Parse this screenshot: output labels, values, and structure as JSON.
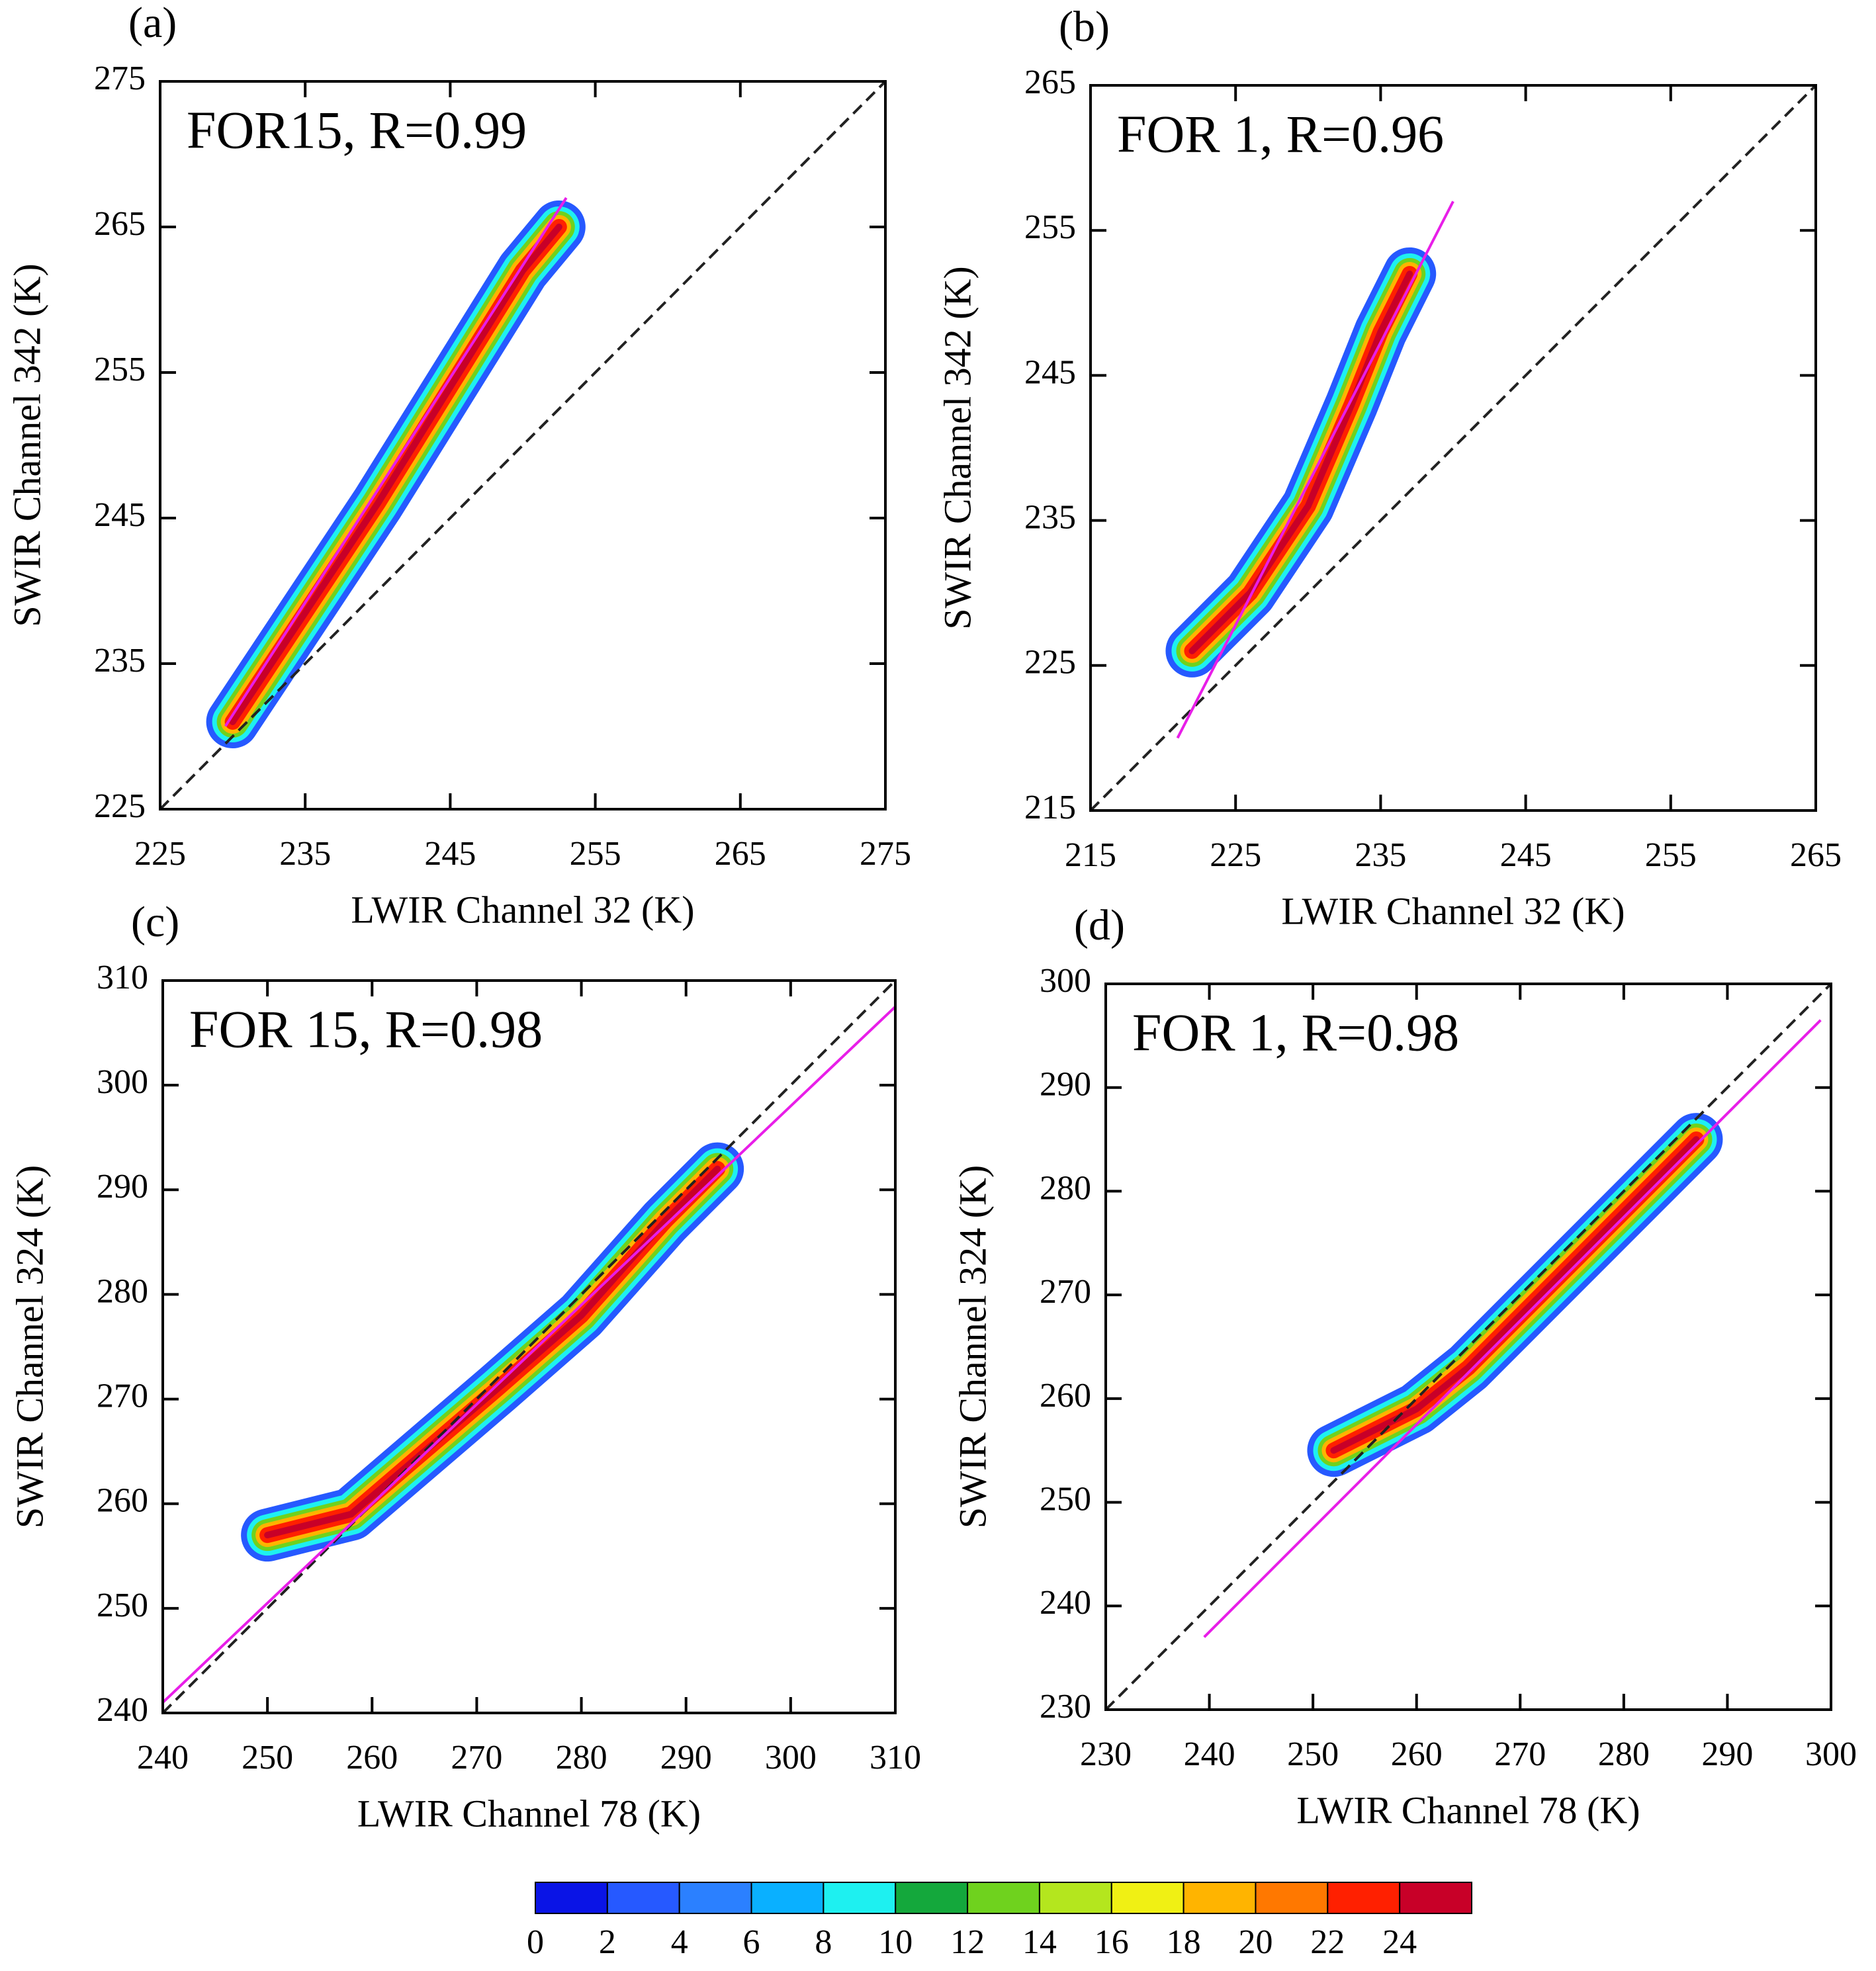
{
  "chart_data": [
    {
      "type": "contour",
      "label": "(a)",
      "annotation": "FOR15, R=0.99",
      "x_label": "LWIR Channel 32 (K)",
      "y_label": "SWIR Channel 342 (K)",
      "xlim": [
        225,
        275
      ],
      "xticks": [
        225,
        235,
        245,
        255,
        265,
        275
      ],
      "ylim": [
        225,
        275
      ],
      "yticks": [
        225,
        235,
        245,
        255,
        265,
        275
      ],
      "density": {
        "x": [
          230,
          235,
          240,
          245,
          250,
          252.5
        ],
        "y": [
          231,
          238.5,
          246,
          254,
          262,
          265
        ]
      },
      "fit": {
        "x": [
          229.5,
          253
        ],
        "y": [
          230.7,
          267
        ],
        "color": "#e81ee8"
      }
    },
    {
      "type": "contour",
      "label": "(b)",
      "annotation": "FOR 1, R=0.96",
      "x_label": "LWIR Channel 32 (K)",
      "y_label": "SWIR Channel 342 (K)",
      "xlim": [
        215,
        265
      ],
      "xticks": [
        215,
        225,
        235,
        245,
        255,
        265
      ],
      "ylim": [
        215,
        265
      ],
      "yticks": [
        215,
        225,
        235,
        245,
        255,
        265
      ],
      "density": {
        "x": [
          222,
          226,
          230,
          233,
          235,
          237
        ],
        "y": [
          226,
          230,
          236,
          243,
          248,
          252
        ]
      },
      "fit": {
        "x": [
          221,
          240
        ],
        "y": [
          220,
          257
        ],
        "color": "#e81ee8"
      }
    },
    {
      "type": "contour",
      "label": "(c)",
      "annotation": "FOR 15, R=0.98",
      "x_label": "LWIR Channel 78 (K)",
      "y_label": "SWIR Channel 324 (K)",
      "xlim": [
        240,
        310
      ],
      "xticks": [
        240,
        250,
        260,
        270,
        280,
        290,
        300,
        310
      ],
      "ylim": [
        240,
        310
      ],
      "yticks": [
        240,
        250,
        260,
        270,
        280,
        290,
        300,
        310
      ],
      "density": {
        "x": [
          250,
          258,
          265,
          272,
          280,
          288,
          293
        ],
        "y": [
          257,
          259,
          265,
          271,
          278,
          287,
          292
        ]
      },
      "fit": {
        "x": [
          240,
          310
        ],
        "y": [
          241,
          307.5
        ],
        "color": "#e81ee8"
      }
    },
    {
      "type": "contour",
      "label": "(d)",
      "annotation": "FOR 1, R=0.98",
      "x_label": "LWIR Channel 78 (K)",
      "y_label": "SWIR Channel 324 (K)",
      "xlim": [
        230,
        300
      ],
      "xticks": [
        230,
        240,
        250,
        260,
        270,
        280,
        290,
        300
      ],
      "ylim": [
        230,
        300
      ],
      "yticks": [
        230,
        240,
        250,
        260,
        270,
        280,
        290,
        300
      ],
      "density": {
        "x": [
          252,
          260,
          265,
          272,
          280,
          287
        ],
        "y": [
          255,
          259,
          263,
          270,
          278,
          285
        ]
      },
      "fit": {
        "x": [
          239.5,
          299
        ],
        "y": [
          237,
          296.5
        ],
        "color": "#e81ee8"
      }
    }
  ],
  "colorbar": {
    "ticks": [
      0,
      2,
      4,
      6,
      8,
      10,
      12,
      14,
      16,
      18,
      20,
      22,
      24
    ],
    "colors": [
      "#0a14e6",
      "#2659ff",
      "#2b80ff",
      "#0ab0ff",
      "#1ef0f0",
      "#14a83c",
      "#6fd21e",
      "#b4e61e",
      "#f0f014",
      "#ffb400",
      "#ff7800",
      "#ff2000",
      "#c80028"
    ]
  }
}
